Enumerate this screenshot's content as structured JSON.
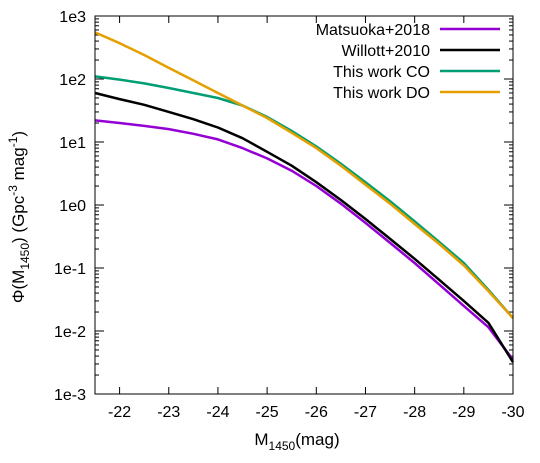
{
  "chart_data": {
    "type": "line",
    "x_axis": {
      "label_main": "M",
      "label_sub": "1450",
      "label_tail": "(mag)",
      "range": [
        -21.5,
        -30
      ],
      "ticks": [
        -22,
        -23,
        -24,
        -25,
        -26,
        -27,
        -28,
        -29,
        -30
      ],
      "tick_labels": [
        "-22",
        "-23",
        "-24",
        "-25",
        "-26",
        "-27",
        "-28",
        "-29",
        "-30"
      ]
    },
    "y_axis": {
      "label_prefix": "Φ(M",
      "label_sub": "1450",
      "label_mid": ") (Gpc",
      "label_sup1": "-3",
      "label_mag": " mag",
      "label_sup2": "-1",
      "label_end": ")",
      "scale": "log",
      "range": [
        0.001,
        1000
      ],
      "ticks": [
        0.001,
        0.01,
        0.1,
        1,
        10,
        100,
        1000
      ],
      "tick_labels": [
        "1e-3",
        "1e-2",
        "1e-1",
        "1e0",
        "1e1",
        "1e2",
        "1e3"
      ]
    },
    "grid": false,
    "legend_position": "top-right",
    "series": [
      {
        "name": "Matsuoka+2018",
        "color": "#9400d3",
        "points": [
          [
            -21.5,
            22
          ],
          [
            -22,
            20
          ],
          [
            -22.5,
            18
          ],
          [
            -23,
            16
          ],
          [
            -23.5,
            13.5
          ],
          [
            -24,
            11
          ],
          [
            -24.5,
            8
          ],
          [
            -25,
            5.5
          ],
          [
            -25.5,
            3.5
          ],
          [
            -26,
            2.0
          ],
          [
            -26.5,
            1.05
          ],
          [
            -27,
            0.52
          ],
          [
            -27.5,
            0.25
          ],
          [
            -28,
            0.12
          ],
          [
            -28.5,
            0.055
          ],
          [
            -29,
            0.025
          ],
          [
            -29.5,
            0.0115
          ],
          [
            -30,
            0.0035
          ]
        ]
      },
      {
        "name": "Willott+2010",
        "color": "#000000",
        "points": [
          [
            -21.5,
            60
          ],
          [
            -22,
            48
          ],
          [
            -22.5,
            39
          ],
          [
            -23,
            30
          ],
          [
            -23.5,
            23
          ],
          [
            -24,
            17
          ],
          [
            -24.5,
            11.5
          ],
          [
            -25,
            7.0
          ],
          [
            -25.5,
            4.2
          ],
          [
            -26,
            2.3
          ],
          [
            -26.5,
            1.2
          ],
          [
            -27,
            0.6
          ],
          [
            -27.5,
            0.29
          ],
          [
            -28,
            0.14
          ],
          [
            -28.5,
            0.065
          ],
          [
            -29,
            0.03
          ],
          [
            -29.5,
            0.0135
          ],
          [
            -30,
            0.0032
          ]
        ]
      },
      {
        "name": "This work CO",
        "color": "#009e73",
        "points": [
          [
            -21.5,
            110
          ],
          [
            -22,
            98
          ],
          [
            -22.5,
            85
          ],
          [
            -23,
            72
          ],
          [
            -23.5,
            60
          ],
          [
            -24,
            50
          ],
          [
            -24.5,
            38
          ],
          [
            -25,
            25
          ],
          [
            -25.5,
            15
          ],
          [
            -26,
            8.5
          ],
          [
            -26.5,
            4.5
          ],
          [
            -27,
            2.3
          ],
          [
            -27.5,
            1.15
          ],
          [
            -28,
            0.55
          ],
          [
            -28.5,
            0.26
          ],
          [
            -29,
            0.12
          ],
          [
            -29.5,
            0.045
          ],
          [
            -30,
            0.016
          ]
        ]
      },
      {
        "name": "This work DO",
        "color": "#e69f00",
        "points": [
          [
            -21.5,
            550
          ],
          [
            -22,
            370
          ],
          [
            -22.5,
            240
          ],
          [
            -23,
            150
          ],
          [
            -23.5,
            95
          ],
          [
            -24,
            60
          ],
          [
            -24.5,
            38
          ],
          [
            -25,
            24
          ],
          [
            -25.5,
            14
          ],
          [
            -26,
            8.0
          ],
          [
            -26.5,
            4.2
          ],
          [
            -27,
            2.1
          ],
          [
            -27.5,
            1.05
          ],
          [
            -28,
            0.5
          ],
          [
            -28.5,
            0.24
          ],
          [
            -29,
            0.11
          ],
          [
            -29.5,
            0.043
          ],
          [
            -30,
            0.016
          ]
        ]
      }
    ]
  }
}
